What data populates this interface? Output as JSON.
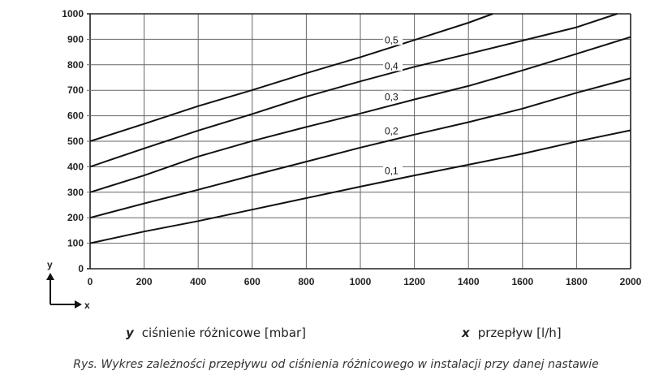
{
  "chart_data": {
    "type": "line",
    "title": "",
    "xlabel": "x",
    "ylabel": "y",
    "xlim": [
      0,
      2000
    ],
    "ylim": [
      0,
      1000
    ],
    "xticks": [
      0,
      200,
      400,
      600,
      800,
      1000,
      1200,
      1400,
      1600,
      1800,
      2000
    ],
    "yticks": [
      0,
      100,
      200,
      300,
      400,
      500,
      600,
      700,
      800,
      900,
      1000
    ],
    "grid": true,
    "series": [
      {
        "name": "0,1",
        "x": [
          0,
          200,
          400,
          600,
          800,
          1000,
          1200,
          1400,
          1600,
          1800,
          2000
        ],
        "y": [
          100,
          146,
          187,
          232,
          277,
          322,
          366,
          408,
          451,
          499,
          543
        ],
        "label_at": [
          1090,
          380
        ]
      },
      {
        "name": "0,2",
        "x": [
          0,
          200,
          400,
          600,
          800,
          1000,
          1200,
          1400,
          1600,
          1800,
          2000
        ],
        "y": [
          200,
          256,
          310,
          366,
          420,
          475,
          526,
          575,
          628,
          690,
          747
        ],
        "label_at": [
          1090,
          536
        ]
      },
      {
        "name": "0,3",
        "x": [
          0,
          200,
          400,
          600,
          800,
          1000,
          1200,
          1400,
          1600,
          1800,
          2000
        ],
        "y": [
          300,
          366,
          440,
          501,
          556,
          609,
          664,
          717,
          778,
          843,
          909
        ],
        "label_at": [
          1090,
          670
        ]
      },
      {
        "name": "0,4",
        "x": [
          0,
          200,
          400,
          600,
          800,
          1000,
          1200,
          1400,
          1600,
          1800,
          1950
        ],
        "y": [
          400,
          472,
          542,
          607,
          675,
          735,
          792,
          843,
          895,
          947,
          1000
        ],
        "label_at": [
          1090,
          792
        ]
      },
      {
        "name": "0,5",
        "x": [
          0,
          200,
          400,
          600,
          800,
          1000,
          1200,
          1400,
          1490
        ],
        "y": [
          500,
          568,
          638,
          701,
          767,
          830,
          897,
          965,
          1000
        ],
        "label_at": [
          1090,
          894
        ]
      }
    ]
  },
  "legend": {
    "y_symbol": "y",
    "y_text": "ciśnienie różnicowe [mbar]",
    "x_symbol": "x",
    "x_text": "przepływ [l/h]"
  },
  "caption": "Rys. Wykres zależności przepływu od ciśnienia różnicowego w instalacji przy danej nastawie"
}
